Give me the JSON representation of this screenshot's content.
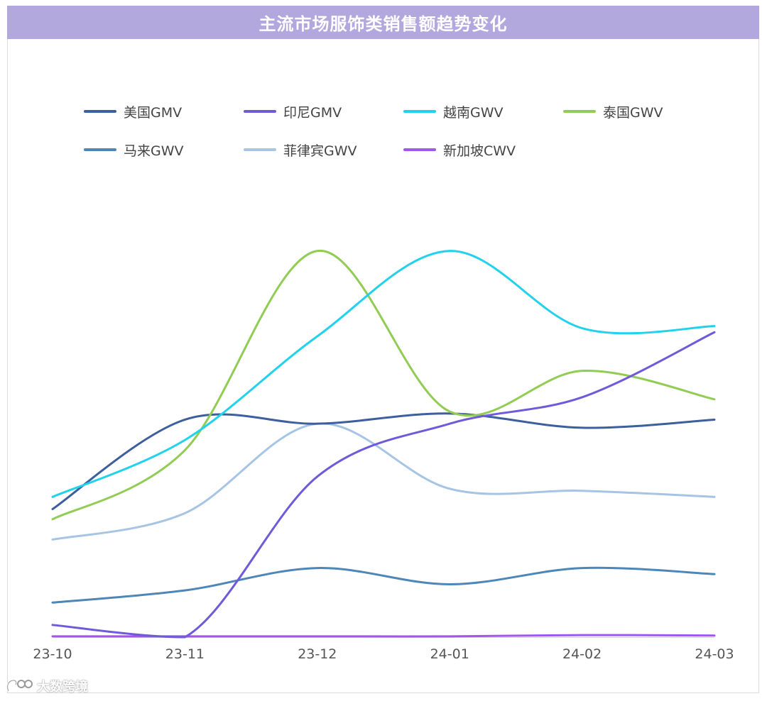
{
  "title": "主流市场服饰类销售额趋势变化",
  "watermark": {
    "text": "大数跨境",
    "logo_icon": "dashuju-logo-icon"
  },
  "chart_data": {
    "type": "line",
    "smooth": true,
    "title": "主流市场服饰类销售额趋势变化",
    "categories": [
      "23-10",
      "23-11",
      "23-12",
      "24-01",
      "24-02",
      "24-03"
    ],
    "ylim": [
      0,
      100
    ],
    "y_axis_labels_shown": false,
    "grid": false,
    "legend_position": "top",
    "series": [
      {
        "name": "美国GMV",
        "color": "#3d5f9e",
        "values": [
          31.5,
          53.5,
          52.5,
          55.0,
          51.5,
          53.5
        ]
      },
      {
        "name": "印尼GMV",
        "color": "#6f5ad8",
        "values": [
          3.0,
          0.0,
          39.5,
          52.5,
          59.0,
          75.0
        ]
      },
      {
        "name": "越南GWV",
        "color": "#21d2ec",
        "values": [
          34.5,
          48.5,
          74.0,
          95.0,
          76.0,
          76.5
        ]
      },
      {
        "name": "泰国GWV",
        "color": "#92cc55",
        "values": [
          29.0,
          46.0,
          95.0,
          55.5,
          65.5,
          58.5
        ]
      },
      {
        "name": "马来GWV",
        "color": "#4d86b8",
        "values": [
          8.5,
          11.5,
          17.0,
          13.0,
          17.0,
          15.5
        ]
      },
      {
        "name": "菲律宾GWV",
        "color": "#a7c4e4",
        "values": [
          24.0,
          30.5,
          52.5,
          36.5,
          36.0,
          34.5
        ]
      },
      {
        "name": "新加坡CWV",
        "color": "#a257ec",
        "values": [
          0.2,
          0.2,
          0.2,
          0.2,
          0.5,
          0.4
        ]
      }
    ]
  }
}
